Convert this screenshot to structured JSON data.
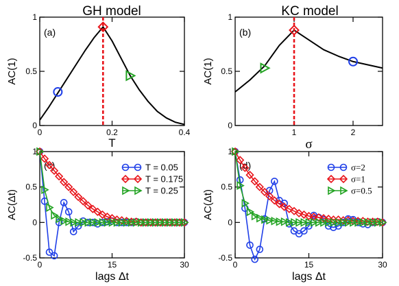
{
  "colors": {
    "blue": "#1f3fe8",
    "red": "#e8141a",
    "green": "#23a323",
    "black": "#000000"
  },
  "chart_data": [
    {
      "id": "a",
      "type": "line",
      "title": "GH  model",
      "panel_label": "(a)",
      "xlabel": "T",
      "ylabel": "AC(1)",
      "xlim": [
        0,
        0.4
      ],
      "ylim": [
        0,
        1
      ],
      "xticks": [
        "0",
        "0.2",
        "0.4"
      ],
      "yticks": [
        "0",
        "0.5",
        "1"
      ],
      "curve": {
        "x": [
          0,
          0.025,
          0.05,
          0.075,
          0.1,
          0.125,
          0.15,
          0.175,
          0.2,
          0.225,
          0.25,
          0.275,
          0.3,
          0.325,
          0.35,
          0.375,
          0.4
        ],
        "y": [
          0.05,
          0.17,
          0.3,
          0.43,
          0.56,
          0.69,
          0.81,
          0.91,
          0.78,
          0.62,
          0.46,
          0.33,
          0.22,
          0.13,
          0.07,
          0.03,
          0.01
        ]
      },
      "markers": [
        {
          "x": 0.05,
          "y": 0.31,
          "shape": "circle",
          "color": "blue"
        },
        {
          "x": 0.175,
          "y": 0.91,
          "shape": "diamond",
          "color": "red"
        },
        {
          "x": 0.25,
          "y": 0.46,
          "shape": "triangle",
          "color": "green"
        }
      ],
      "vline": 0.175
    },
    {
      "id": "b",
      "type": "line",
      "title": "KC  model",
      "panel_label": "(b)",
      "xlabel": "σ",
      "ylabel": "AC(1)",
      "xlim": [
        0,
        2.5
      ],
      "ylim": [
        0,
        1
      ],
      "xticks": [
        "1",
        "2"
      ],
      "yticks": [
        "0",
        "0.5",
        "1"
      ],
      "curve": {
        "x": [
          0,
          0.25,
          0.5,
          0.75,
          1.0,
          1.25,
          1.5,
          1.75,
          2.0,
          2.25,
          2.5
        ],
        "y": [
          0.31,
          0.42,
          0.55,
          0.74,
          0.88,
          0.79,
          0.7,
          0.64,
          0.59,
          0.56,
          0.53
        ]
      },
      "markers": [
        {
          "x": 0.5,
          "y": 0.53,
          "shape": "triangle",
          "color": "green"
        },
        {
          "x": 1.0,
          "y": 0.88,
          "shape": "diamond",
          "color": "red"
        },
        {
          "x": 2.0,
          "y": 0.59,
          "shape": "circle",
          "color": "blue"
        }
      ],
      "vline": 1.0
    },
    {
      "id": "c",
      "type": "line",
      "panel_label": "(c)",
      "xlabel": "lags Δt",
      "ylabel": "AC(Δt)",
      "xlim": [
        0,
        30
      ],
      "ylim": [
        -0.5,
        1
      ],
      "xticks": [
        "0",
        "15",
        "30"
      ],
      "yticks": [
        "-0.5",
        "0",
        "0.5",
        "1"
      ],
      "legend_position": "top-right",
      "series": [
        {
          "name": "T = 0.05",
          "color": "blue",
          "shape": "circle",
          "values": [
            1.0,
            0.3,
            -0.42,
            -0.47,
            0.0,
            0.28,
            0.15,
            -0.13,
            -0.05,
            0.02,
            0.0,
            0.0,
            -0.02,
            0.0,
            0.01,
            0.02,
            0.0,
            0.0,
            0.0,
            0.0,
            0.01,
            0.0,
            0.0,
            0.0,
            0.0,
            0.0,
            0.0,
            0.0,
            0.0,
            0.0,
            0.0
          ]
        },
        {
          "name": "T = 0.175",
          "color": "red",
          "shape": "diamond",
          "values": [
            1.0,
            0.9,
            0.81,
            0.73,
            0.65,
            0.57,
            0.5,
            0.43,
            0.36,
            0.3,
            0.24,
            0.19,
            0.15,
            0.11,
            0.08,
            0.06,
            0.04,
            0.03,
            0.02,
            0.01,
            0.01,
            0.0,
            0.0,
            0.0,
            0.0,
            0.0,
            0.0,
            0.0,
            0.0,
            0.0,
            0.0
          ]
        },
        {
          "name": "T = 0.25",
          "color": "green",
          "shape": "triangle",
          "values": [
            1.0,
            0.46,
            0.21,
            0.1,
            0.05,
            0.02,
            0.01,
            0.0,
            0.0,
            0.0,
            0.0,
            0.0,
            0.0,
            0.0,
            0.0,
            0.0,
            0.0,
            0.0,
            0.0,
            0.0,
            0.0,
            0.0,
            0.0,
            0.0,
            0.0,
            0.0,
            0.0,
            0.0,
            0.0,
            0.0,
            0.0
          ]
        }
      ]
    },
    {
      "id": "d",
      "type": "line",
      "panel_label": "(d)",
      "xlabel": "lags Δt",
      "ylabel": "AC(Δt)",
      "xlim": [
        0,
        30
      ],
      "ylim": [
        -0.5,
        1
      ],
      "xticks": [
        "0",
        "15",
        "30"
      ],
      "yticks": [
        "-0.5",
        "0",
        "0.5",
        "1"
      ],
      "legend_position": "top-right",
      "series": [
        {
          "name": "σ=2",
          "color": "blue",
          "shape": "circle",
          "values": [
            1.0,
            0.6,
            0.2,
            -0.32,
            -0.52,
            -0.38,
            0.05,
            0.45,
            0.58,
            0.31,
            0.27,
            -0.02,
            -0.12,
            -0.16,
            -0.12,
            -0.05,
            0.1,
            0.07,
            0.04,
            -0.05,
            -0.07,
            -0.05,
            0.0,
            0.05,
            0.04,
            0.0,
            -0.02,
            -0.03,
            0.0,
            0.01,
            0.0
          ]
        },
        {
          "name": "σ=1",
          "color": "red",
          "shape": "diamond",
          "values": [
            1.0,
            0.88,
            0.77,
            0.67,
            0.58,
            0.5,
            0.43,
            0.37,
            0.31,
            0.26,
            0.22,
            0.19,
            0.16,
            0.13,
            0.11,
            0.09,
            0.08,
            0.07,
            0.06,
            0.05,
            0.04,
            0.04,
            0.03,
            0.03,
            0.02,
            0.02,
            0.02,
            0.01,
            0.01,
            0.01,
            0.0
          ]
        },
        {
          "name": "σ=0.5",
          "color": "green",
          "shape": "triangle",
          "values": [
            1.0,
            0.52,
            0.27,
            0.15,
            0.09,
            0.06,
            0.04,
            0.03,
            0.02,
            0.01,
            0.01,
            0.0,
            0.0,
            0.0,
            0.0,
            0.0,
            0.0,
            0.0,
            0.0,
            0.0,
            0.0,
            0.0,
            0.0,
            0.0,
            0.0,
            0.0,
            0.0,
            0.0,
            0.0,
            0.0,
            0.0
          ]
        }
      ]
    }
  ]
}
